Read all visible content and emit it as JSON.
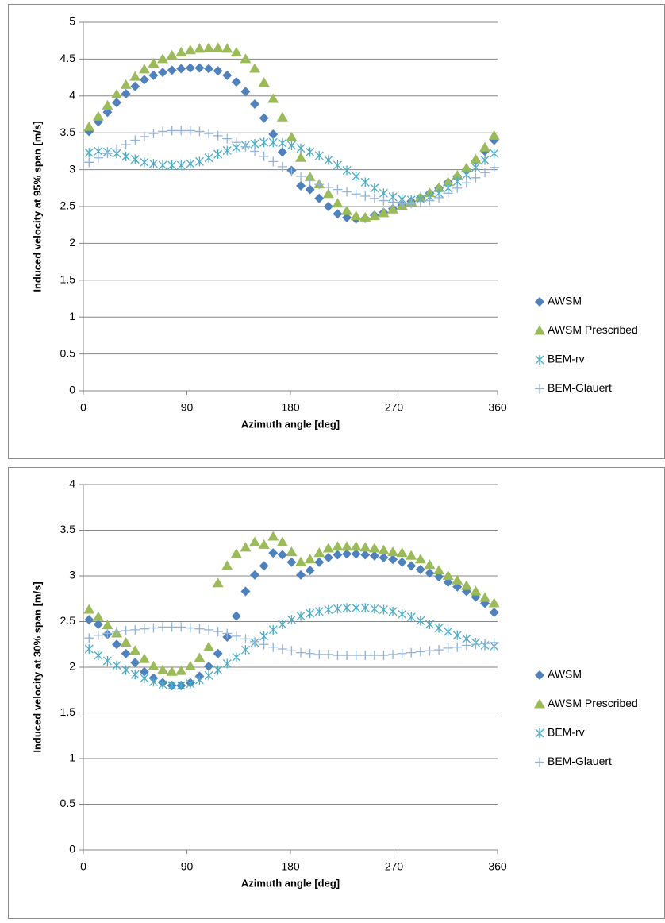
{
  "chart_data": [
    {
      "type": "scatter",
      "xlabel": "Azimuth angle [deg]",
      "ylabel": "Induced velocity at 95% span [m/s]",
      "xlim": [
        0,
        360
      ],
      "xticks": [
        0,
        90,
        180,
        270,
        360
      ],
      "ylim": [
        0,
        5
      ],
      "yticks": [
        0,
        0.5,
        1,
        1.5,
        2,
        2.5,
        3,
        3.5,
        4,
        4.5,
        5
      ],
      "grid": true,
      "legend": "right",
      "x": [
        5,
        13,
        21,
        29,
        37,
        45,
        53,
        61,
        69,
        77,
        85,
        93,
        101,
        109,
        117,
        125,
        133,
        141,
        149,
        157,
        165,
        173,
        181,
        189,
        197,
        205,
        213,
        221,
        229,
        237,
        245,
        253,
        261,
        269,
        277,
        285,
        293,
        301,
        309,
        317,
        325,
        333,
        341,
        349,
        357
      ],
      "series": [
        {
          "name": "AWSM",
          "color": "#4f81bd",
          "marker": "diamond",
          "values": [
            3.52,
            3.65,
            3.78,
            3.91,
            4.03,
            4.13,
            4.22,
            4.28,
            4.32,
            4.35,
            4.37,
            4.38,
            4.38,
            4.37,
            4.34,
            4.28,
            4.19,
            4.06,
            3.89,
            3.7,
            3.48,
            3.24,
            2.99,
            2.78,
            2.73,
            2.61,
            2.5,
            2.4,
            2.35,
            2.33,
            2.34,
            2.38,
            2.42,
            2.47,
            2.52,
            2.57,
            2.62,
            2.68,
            2.75,
            2.83,
            2.91,
            3.0,
            3.12,
            3.25,
            3.4
          ]
        },
        {
          "name": "AWSM Prescribed",
          "color": "#9bbb59",
          "marker": "triangle",
          "values": [
            3.58,
            3.72,
            3.87,
            4.02,
            4.15,
            4.26,
            4.36,
            4.44,
            4.5,
            4.55,
            4.59,
            4.62,
            4.64,
            4.65,
            4.65,
            4.64,
            4.59,
            4.5,
            4.37,
            4.18,
            3.96,
            3.71,
            3.44,
            3.16,
            2.9,
            2.8,
            2.67,
            2.54,
            2.44,
            2.37,
            2.35,
            2.37,
            2.41,
            2.46,
            2.51,
            2.56,
            2.62,
            2.68,
            2.75,
            2.83,
            2.92,
            3.02,
            3.14,
            3.3,
            3.46
          ]
        },
        {
          "name": "BEM-rv",
          "color": "#4bacc6",
          "marker": "star",
          "values": [
            3.23,
            3.25,
            3.24,
            3.22,
            3.18,
            3.14,
            3.1,
            3.08,
            3.06,
            3.06,
            3.06,
            3.08,
            3.11,
            3.16,
            3.21,
            3.26,
            3.3,
            3.33,
            3.35,
            3.37,
            3.37,
            3.36,
            3.33,
            3.29,
            3.24,
            3.19,
            3.13,
            3.06,
            2.99,
            2.91,
            2.83,
            2.75,
            2.68,
            2.63,
            2.6,
            2.59,
            2.6,
            2.63,
            2.68,
            2.75,
            2.84,
            2.93,
            3.03,
            3.13,
            3.22
          ]
        },
        {
          "name": "BEM-Glauert",
          "color": "#95b3d7",
          "marker": "plus",
          "values": [
            3.1,
            3.16,
            3.22,
            3.28,
            3.34,
            3.4,
            3.45,
            3.49,
            3.52,
            3.53,
            3.53,
            3.53,
            3.52,
            3.49,
            3.46,
            3.42,
            3.37,
            3.31,
            3.25,
            3.18,
            3.11,
            3.04,
            2.97,
            2.91,
            2.85,
            2.8,
            2.76,
            2.73,
            2.7,
            2.67,
            2.64,
            2.61,
            2.58,
            2.56,
            2.54,
            2.54,
            2.55,
            2.58,
            2.62,
            2.68,
            2.75,
            2.82,
            2.89,
            2.96,
            3.03
          ]
        }
      ]
    },
    {
      "type": "scatter",
      "xlabel": "Azimuth angle [deg]",
      "ylabel": "Induced velocity at 30% span [m/s]",
      "xlim": [
        0,
        360
      ],
      "xticks": [
        0,
        90,
        180,
        270,
        360
      ],
      "ylim": [
        0,
        4
      ],
      "yticks": [
        0,
        0.5,
        1,
        1.5,
        2,
        2.5,
        3,
        3.5,
        4
      ],
      "grid": true,
      "legend": "right",
      "x": [
        5,
        13,
        21,
        29,
        37,
        45,
        53,
        61,
        69,
        77,
        85,
        93,
        101,
        109,
        117,
        125,
        133,
        141,
        149,
        157,
        165,
        173,
        181,
        189,
        197,
        205,
        213,
        221,
        229,
        237,
        245,
        253,
        261,
        269,
        277,
        285,
        293,
        301,
        309,
        317,
        325,
        333,
        341,
        349,
        357
      ],
      "series": [
        {
          "name": "AWSM",
          "color": "#4f81bd",
          "marker": "diamond",
          "values": [
            2.52,
            2.47,
            2.36,
            2.25,
            2.15,
            2.05,
            1.95,
            1.88,
            1.83,
            1.8,
            1.8,
            1.83,
            1.9,
            2.01,
            2.15,
            2.33,
            2.56,
            2.83,
            3.01,
            3.11,
            3.25,
            3.23,
            3.15,
            3.01,
            3.06,
            3.15,
            3.2,
            3.23,
            3.24,
            3.24,
            3.23,
            3.22,
            3.2,
            3.18,
            3.15,
            3.11,
            3.07,
            3.03,
            2.99,
            2.93,
            2.88,
            2.83,
            2.77,
            2.7,
            2.6
          ]
        },
        {
          "name": "AWSM Prescribed",
          "color": "#9bbb59",
          "marker": "triangle",
          "values": [
            2.63,
            2.55,
            2.46,
            2.37,
            2.27,
            2.18,
            2.09,
            2.01,
            1.97,
            1.95,
            1.96,
            2.01,
            2.1,
            2.22,
            2.92,
            3.11,
            3.24,
            3.31,
            3.37,
            3.34,
            3.43,
            3.37,
            3.26,
            3.15,
            3.18,
            3.25,
            3.3,
            3.32,
            3.32,
            3.32,
            3.31,
            3.3,
            3.28,
            3.26,
            3.25,
            3.22,
            3.18,
            3.12,
            3.06,
            3.0,
            2.95,
            2.89,
            2.83,
            2.76,
            2.7
          ]
        },
        {
          "name": "BEM-rv",
          "color": "#4bacc6",
          "marker": "star",
          "values": [
            2.2,
            2.13,
            2.07,
            2.02,
            1.97,
            1.92,
            1.88,
            1.84,
            1.81,
            1.8,
            1.8,
            1.82,
            1.86,
            1.91,
            1.97,
            2.04,
            2.11,
            2.19,
            2.27,
            2.34,
            2.41,
            2.47,
            2.52,
            2.56,
            2.59,
            2.61,
            2.63,
            2.64,
            2.65,
            2.65,
            2.65,
            2.64,
            2.63,
            2.61,
            2.58,
            2.55,
            2.51,
            2.47,
            2.43,
            2.39,
            2.35,
            2.31,
            2.27,
            2.24,
            2.23
          ]
        },
        {
          "name": "BEM-Glauert",
          "color": "#95b3d7",
          "marker": "plus",
          "values": [
            2.32,
            2.35,
            2.37,
            2.39,
            2.4,
            2.41,
            2.42,
            2.43,
            2.44,
            2.44,
            2.44,
            2.43,
            2.42,
            2.41,
            2.39,
            2.37,
            2.34,
            2.31,
            2.28,
            2.25,
            2.22,
            2.2,
            2.18,
            2.16,
            2.15,
            2.14,
            2.14,
            2.13,
            2.13,
            2.13,
            2.13,
            2.13,
            2.13,
            2.14,
            2.15,
            2.16,
            2.17,
            2.18,
            2.19,
            2.21,
            2.22,
            2.24,
            2.25,
            2.26,
            2.27
          ]
        }
      ]
    }
  ]
}
